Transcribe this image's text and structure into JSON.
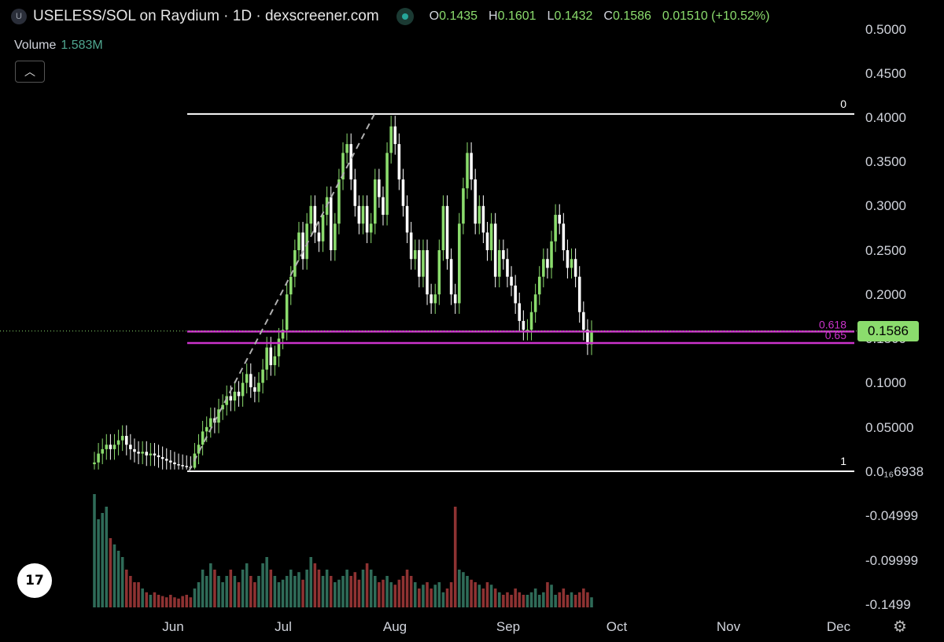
{
  "header": {
    "symbol_badge": "U",
    "title": "USELESS/SOL on Raydium · 1D · dexscreener.com",
    "ohlc": [
      {
        "key": "O",
        "value": "0.1435"
      },
      {
        "key": "H",
        "value": "0.1601"
      },
      {
        "key": "L",
        "value": "0.1432"
      },
      {
        "key": "C",
        "value": "0.1586"
      }
    ],
    "change": "0.01510 (+10.52%)"
  },
  "volume": {
    "label": "Volume",
    "value": "1.583M"
  },
  "collapse_icon": "chevron-up-icon",
  "logo": {
    "text": "17"
  },
  "settings_icon": "gear-icon",
  "last_price": "0.1586",
  "colors": {
    "up": "#8bdc6d",
    "down": "#ffffff",
    "vol_up": "#2f6b58",
    "vol_down": "#8e3232",
    "fib": "#cc33cc"
  },
  "chart_data": {
    "type": "candlestick",
    "x_ticks": [
      "Jun",
      "Jul",
      "Aug",
      "Sep",
      "Oct",
      "Nov",
      "Dec"
    ],
    "y_ticks": [
      "0.5000",
      "0.4500",
      "0.4000",
      "0.3500",
      "0.3000",
      "0.2500",
      "0.2000",
      "0.1500",
      "0.1000",
      "0.05000",
      "0.0₁₆6938",
      "-0.04999",
      "-0.09999",
      "-0.1499"
    ],
    "ylim": [
      -0.16,
      0.51
    ],
    "fib_levels": [
      {
        "label": "0",
        "value": 0.404
      },
      {
        "label": "0.618",
        "value": 0.158
      },
      {
        "label": "0.65",
        "value": 0.145
      },
      {
        "label": "1",
        "value": 0.0
      }
    ],
    "closes": [
      0.01,
      0.02,
      0.025,
      0.03,
      0.025,
      0.03,
      0.035,
      0.04,
      0.03,
      0.025,
      0.022,
      0.02,
      0.022,
      0.018,
      0.02,
      0.018,
      0.016,
      0.014,
      0.012,
      0.01,
      0.008,
      0.007,
      0.006,
      0.005,
      0.004,
      0.02,
      0.03,
      0.045,
      0.05,
      0.06,
      0.055,
      0.07,
      0.075,
      0.085,
      0.08,
      0.09,
      0.085,
      0.1,
      0.11,
      0.095,
      0.09,
      0.1,
      0.115,
      0.14,
      0.12,
      0.13,
      0.15,
      0.16,
      0.2,
      0.22,
      0.25,
      0.27,
      0.24,
      0.28,
      0.3,
      0.27,
      0.26,
      0.29,
      0.31,
      0.25,
      0.28,
      0.33,
      0.36,
      0.37,
      0.33,
      0.3,
      0.28,
      0.3,
      0.27,
      0.28,
      0.33,
      0.31,
      0.29,
      0.36,
      0.39,
      0.37,
      0.33,
      0.3,
      0.27,
      0.24,
      0.25,
      0.22,
      0.25,
      0.2,
      0.19,
      0.2,
      0.25,
      0.3,
      0.24,
      0.2,
      0.19,
      0.28,
      0.32,
      0.36,
      0.33,
      0.28,
      0.3,
      0.27,
      0.25,
      0.28,
      0.22,
      0.25,
      0.24,
      0.22,
      0.21,
      0.19,
      0.17,
      0.16,
      0.16,
      0.18,
      0.2,
      0.22,
      0.24,
      0.23,
      0.26,
      0.29,
      0.28,
      0.25,
      0.23,
      0.24,
      0.22,
      0.18,
      0.16,
      0.1435,
      0.1586
    ],
    "volumes": [
      0.9,
      0.7,
      0.75,
      0.8,
      0.55,
      0.5,
      0.45,
      0.4,
      0.3,
      0.25,
      0.2,
      0.2,
      0.15,
      0.12,
      0.1,
      0.12,
      0.1,
      0.09,
      0.08,
      0.1,
      0.08,
      0.07,
      0.09,
      0.1,
      0.08,
      0.15,
      0.2,
      0.3,
      0.25,
      0.35,
      0.3,
      0.25,
      0.2,
      0.25,
      0.3,
      0.25,
      0.2,
      0.3,
      0.35,
      0.25,
      0.2,
      0.25,
      0.35,
      0.4,
      0.3,
      0.25,
      0.2,
      0.22,
      0.25,
      0.3,
      0.25,
      0.28,
      0.22,
      0.3,
      0.4,
      0.35,
      0.3,
      0.25,
      0.3,
      0.25,
      0.2,
      0.22,
      0.25,
      0.3,
      0.25,
      0.28,
      0.22,
      0.3,
      0.35,
      0.3,
      0.25,
      0.2,
      0.22,
      0.25,
      0.2,
      0.18,
      0.22,
      0.25,
      0.3,
      0.25,
      0.2,
      0.15,
      0.18,
      0.2,
      0.15,
      0.18,
      0.2,
      0.12,
      0.15,
      0.2,
      0.8,
      0.3,
      0.28,
      0.25,
      0.22,
      0.2,
      0.18,
      0.15,
      0.2,
      0.18,
      0.15,
      0.12,
      0.1,
      0.12,
      0.1,
      0.15,
      0.12,
      0.1,
      0.1,
      0.12,
      0.15,
      0.1,
      0.12,
      0.2,
      0.18,
      0.1,
      0.12,
      0.15,
      0.1,
      0.12,
      0.1,
      0.12,
      0.15,
      0.12,
      0.08
    ]
  }
}
